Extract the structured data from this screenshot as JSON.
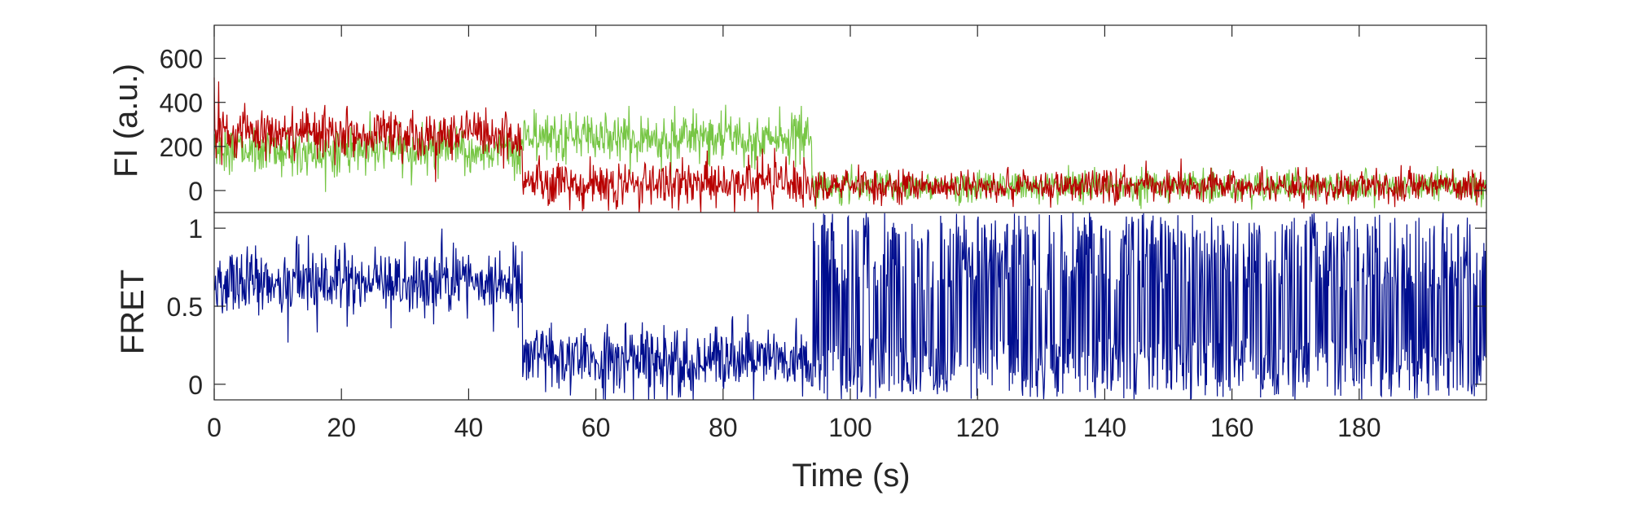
{
  "chart_data": [
    {
      "type": "line",
      "panel": "top",
      "ylabel": "FI (a.u.)",
      "xlim": [
        0,
        200
      ],
      "ylim": [
        -100,
        750
      ],
      "yticks": [
        0,
        200,
        400,
        600
      ],
      "ytick_labels": [
        "0",
        "200",
        "400",
        "600"
      ],
      "grid": false,
      "segments": [
        {
          "x_start": 0,
          "x_end": 48.5,
          "donor_mean": 180,
          "acceptor_mean": 260
        },
        {
          "x_start": 48.5,
          "x_end": 94,
          "donor_mean": 240,
          "acceptor_mean": 30
        },
        {
          "x_start": 94,
          "x_end": 200,
          "donor_mean": 20,
          "acceptor_mean": 20
        }
      ],
      "series": [
        {
          "key": "donor",
          "color": "#77c645"
        },
        {
          "key": "acceptor",
          "color": "#b80000"
        }
      ]
    },
    {
      "type": "line",
      "panel": "bottom",
      "ylabel": "FRET",
      "xlabel": "Time (s)",
      "xlim": [
        0,
        200
      ],
      "ylim": [
        -0.1,
        1.1
      ],
      "yticks": [
        0,
        0.5,
        1
      ],
      "ytick_labels": [
        "0",
        "0.5",
        "1"
      ],
      "xticks": [
        0,
        20,
        40,
        60,
        80,
        100,
        120,
        140,
        160,
        180
      ],
      "xtick_labels": [
        "0",
        "20",
        "40",
        "60",
        "80",
        "100",
        "120",
        "140",
        "160",
        "180"
      ],
      "grid": false,
      "segments": [
        {
          "x_start": 0,
          "x_end": 48.5,
          "fret_mean": 0.65
        },
        {
          "x_start": 48.5,
          "x_end": 94,
          "fret_mean": 0.15
        },
        {
          "x_start": 94,
          "x_end": 200,
          "fret_mean": 0.5
        }
      ],
      "series": [
        {
          "key": "fret",
          "color": "#000e8f"
        }
      ]
    }
  ]
}
